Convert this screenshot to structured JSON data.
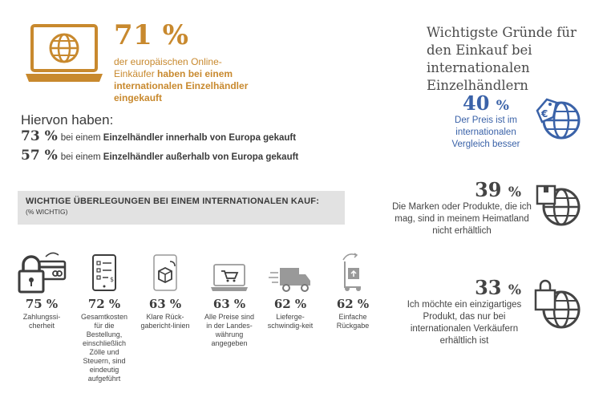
{
  "headline": {
    "percent": "71 %",
    "desc_plain": "der europäischen Online-Einkäufer ",
    "desc_bold": "haben bei einem internationalen Einzelhändler eingekauft"
  },
  "subset": {
    "intro": "Hiervon haben:",
    "rows": [
      {
        "num": "73 %",
        "plain": "bei einem ",
        "bold": "Einzelhändler innerhalb von Europa gekauft"
      },
      {
        "num": "57 %",
        "plain": "bei einem ",
        "bold": "Einzelhändler außerhalb von Europa gekauft"
      }
    ]
  },
  "banner": {
    "title": "WICHTIGE ÜBERLEGUNGEN BEI EINEM INTERNATIONALEN KAUF:",
    "subtitle": "(% WICHTIG)"
  },
  "considerations": [
    {
      "num": "75 %",
      "text": "Zahlungssi-cherheit",
      "icon": "padlock-card-icon"
    },
    {
      "num": "72 %",
      "text": "Gesamtkosten für die Bestellung, einschließlich Zölle und Steuern, sind eindeutig aufgeführt",
      "icon": "tablet-checklist-icon"
    },
    {
      "num": "63 %",
      "text": "Klare Rück-gabericht-linien",
      "icon": "box-return-icon"
    },
    {
      "num": "63 %",
      "text": "Alle Preise sind in der Landes-währung angegeben",
      "icon": "laptop-cart-icon"
    },
    {
      "num": "62 %",
      "text": "Lieferge-schwindig-keit",
      "icon": "delivery-truck-icon"
    },
    {
      "num": "62 %",
      "text": "Einfache Rückgabe",
      "icon": "hand-truck-icon"
    }
  ],
  "reasons": {
    "title": "Wichtigste Gründe für den Einkauf bei internationalen Einzelhändlern",
    "items": [
      {
        "num": "40",
        "sym": "%",
        "text": "Der Preis ist im internationalen Vergleich besser",
        "icon": "globe-price-tag-icon"
      },
      {
        "num": "39",
        "sym": "%",
        "text": "Die Marken oder Produkte, die ich mag, sind in meinem Heimatland nicht erhältlich",
        "icon": "globe-box-icon"
      },
      {
        "num": "33",
        "sym": "%",
        "text": "Ich möchte ein einzigartiges Produkt, das nur bei internationalen Verkäufern erhältlich ist",
        "icon": "globe-shopping-bag-icon"
      }
    ]
  },
  "colors": {
    "accent": "#c8892e",
    "blue": "#3a62a8",
    "text": "#3a3a3a",
    "banner": "#e2e2e2"
  }
}
